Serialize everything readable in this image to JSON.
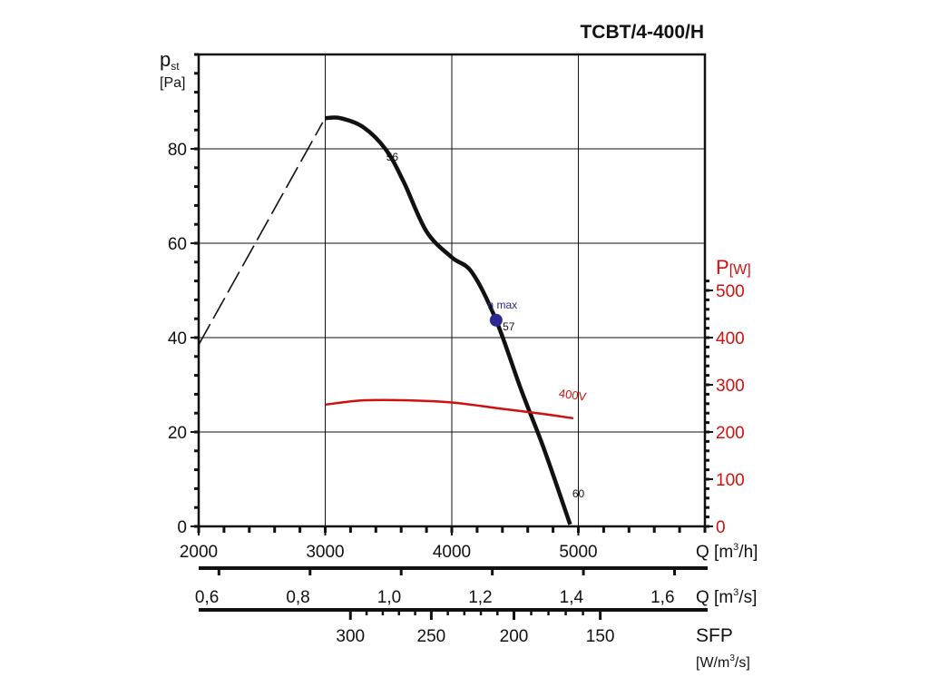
{
  "chart_data": {
    "type": "line",
    "title": "TCBT/4-400/H",
    "xlabel": "Q [m3/h]",
    "xlim": [
      2000,
      6000
    ],
    "x_ticks": [
      2000,
      3000,
      4000,
      5000
    ],
    "x_tick_labels": [
      "2000",
      "3000",
      "4000",
      "5000"
    ],
    "xlabel_parts": {
      "main": "Q [m",
      "sup": "3",
      "tail": "/h]"
    },
    "ylabel_parts": {
      "main": "p",
      "sub": "st",
      "unit": "[Pa]"
    },
    "ylim": [
      0,
      100
    ],
    "y_ticks": [
      0,
      20,
      40,
      60,
      80
    ],
    "y_tick_labels": [
      "0",
      "20",
      "40",
      "60",
      "80"
    ],
    "y2label_parts": {
      "main": "P",
      "unit": "[W]"
    },
    "y2lim": [
      0,
      1000
    ],
    "y2_ticks": [
      0,
      100,
      200,
      300,
      400,
      500
    ],
    "y2_tick_labels": [
      "0",
      "100",
      "200",
      "300",
      "400",
      "500"
    ],
    "grid": true,
    "axis2": {
      "label_parts": {
        "main": "Q [m",
        "sup": "3",
        "tail": "/s]"
      },
      "ticks": [
        0.6,
        0.8,
        1.0,
        1.2,
        1.4,
        1.6
      ],
      "tick_labels": [
        "0,6",
        "0,8",
        "1,0",
        "1,2",
        "1,4",
        "1,6"
      ]
    },
    "axis3": {
      "label": "SFP",
      "unit_parts": {
        "main": "[W/m",
        "sup": "3",
        "tail": "/s]"
      },
      "ticks": [
        300,
        250,
        200,
        150
      ],
      "tick_labels": [
        "300",
        "250",
        "200",
        "150"
      ],
      "tick_at_q_m3h": [
        3199,
        3838,
        4491,
        5173
      ]
    },
    "series": [
      {
        "name": "unstable region",
        "style": "dashed",
        "color": "#111111",
        "axis": "left",
        "x": [
          2000,
          2980
        ],
        "y": [
          38.5,
          85.6
        ]
      },
      {
        "name": "pst",
        "style": "solid",
        "color": "#111111",
        "axis": "left",
        "x": [
          3000,
          3120,
          3300,
          3480,
          3620,
          3800,
          4000,
          4160,
          4350,
          4550,
          4730,
          4935
        ],
        "y": [
          86.5,
          86.5,
          84.6,
          79.8,
          73,
          62.5,
          57,
          53.8,
          43.7,
          28.8,
          16.3,
          0.4
        ]
      },
      {
        "name": "400V",
        "style": "solid",
        "color": "#d01010",
        "axis": "right",
        "x": [
          3000,
          3300,
          3660,
          4020,
          4370,
          4730,
          4960
        ],
        "y": [
          258,
          267,
          267,
          262,
          250,
          238,
          229
        ]
      }
    ],
    "annotations": [
      {
        "text": "56",
        "x": 3530,
        "y": 77.5
      },
      {
        "text": "57",
        "x": 4450,
        "y": 41.5
      },
      {
        "text": "60",
        "x": 5000,
        "y": 6.2
      },
      {
        "text": "400V",
        "x": 4950,
        "y": 27,
        "color": "#d01010"
      },
      {
        "text": "η max",
        "x": 4400,
        "y": 46.2,
        "color": "#2a2a80"
      }
    ],
    "eta_max_point": {
      "x": 4350,
      "y": 43.7,
      "color": "#2a2a90"
    }
  }
}
